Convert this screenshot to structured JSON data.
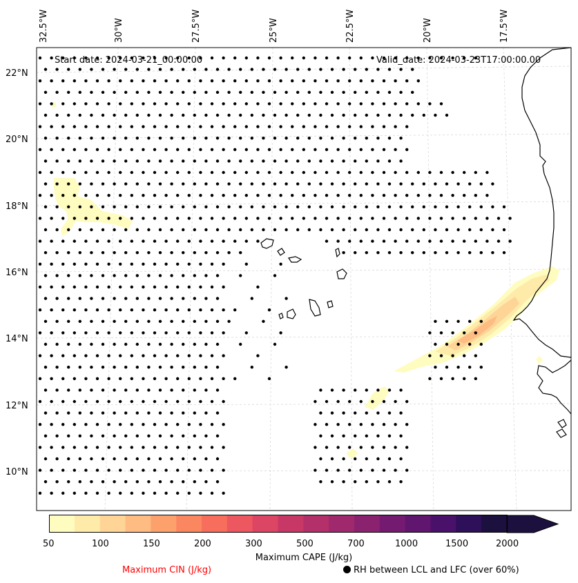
{
  "map": {
    "start_date": "Start date: 2024-03-21_00:00:00",
    "valid_date": "Valid_date: 2024-03-23T17:00:00.00",
    "lon_labels": [
      "32.5°W",
      "30°W",
      "27.5°W",
      "25°W",
      "22.5°W",
      "20°W",
      "17.5°W"
    ],
    "lat_labels": [
      "22°N",
      "20°N",
      "18°N",
      "16°N",
      "14°N",
      "12°N",
      "10°N"
    ],
    "gridlines": true
  },
  "colorbar": {
    "title": "Maximum CAPE (J/kg)",
    "ticks": [
      "50",
      "100",
      "150",
      "200",
      "300",
      "500",
      "700",
      "1000",
      "1500",
      "2000"
    ],
    "colors": [
      "#fffcc0",
      "#feebaa",
      "#fed497",
      "#febb82",
      "#fda16c",
      "#fb8760",
      "#f76e5c",
      "#ec5760",
      "#dc4564",
      "#c83867",
      "#b3306a",
      "#a0296d",
      "#8b2270",
      "#741b71",
      "#60156f",
      "#4a116b",
      "#2e0f5a",
      "#1c103e"
    ],
    "extend": "max"
  },
  "legend": {
    "cin_label": "Maximum CIN (J/kg)",
    "cin_color": "#ff0000",
    "rh_label": "RH between LCL and LFC (over 60%)",
    "rh_marker": "black-dot"
  }
}
